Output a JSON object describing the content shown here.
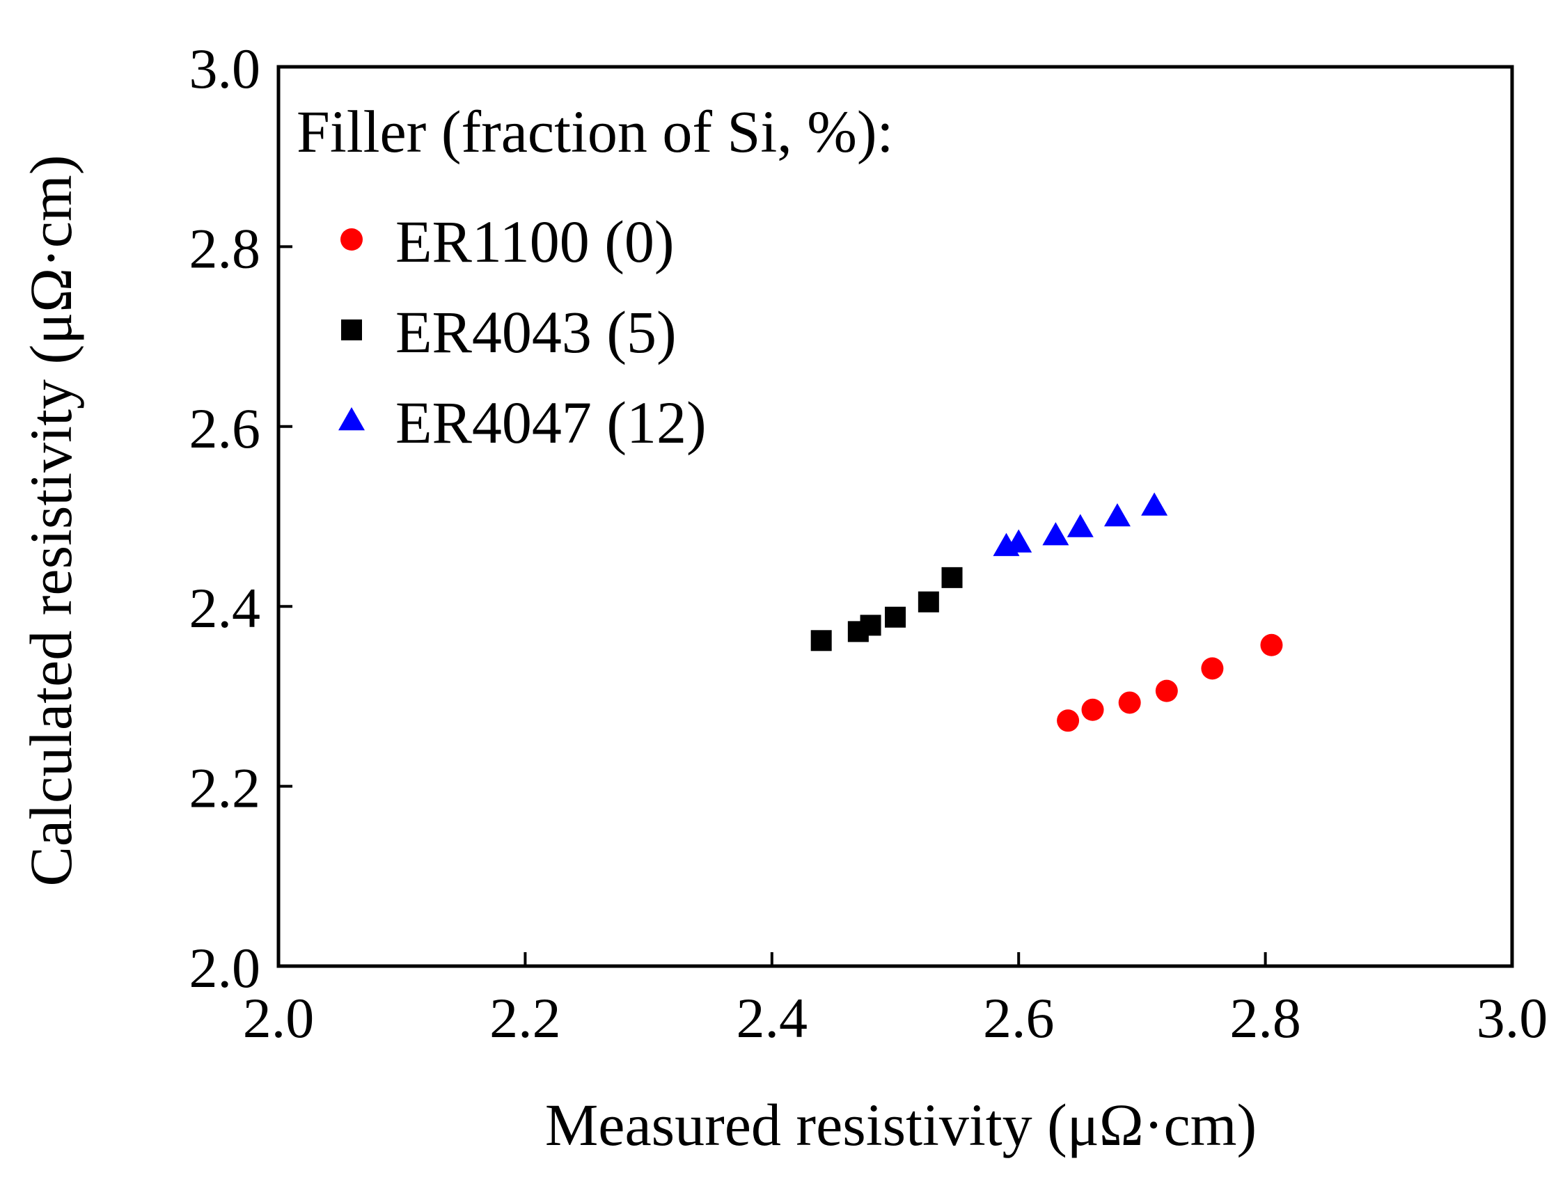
{
  "chart_data": {
    "type": "scatter",
    "title": "",
    "xlabel": "Measured resistivity (μΩ·cm)",
    "ylabel": "Calculated resistivity (μΩ·cm)",
    "xlim": [
      2.0,
      3.0
    ],
    "ylim": [
      2.0,
      3.0
    ],
    "xticks": [
      2.0,
      2.2,
      2.4,
      2.6,
      2.8,
      3.0
    ],
    "yticks": [
      2.0,
      2.2,
      2.4,
      2.6,
      2.8,
      3.0
    ],
    "xtick_labels": [
      "2.0",
      "2.2",
      "2.4",
      "2.6",
      "2.8",
      "3.0"
    ],
    "ytick_labels": [
      "2.0",
      "2.2",
      "2.4",
      "2.6",
      "2.8",
      "3.0"
    ],
    "grid": false,
    "legend": {
      "title": "Filler  (fraction of Si, %):",
      "position": "top-left"
    },
    "series": [
      {
        "name": "ER1100 (0)",
        "marker": "circle",
        "color": "#ff0000",
        "points": [
          {
            "x": 2.64,
            "y": 2.273
          },
          {
            "x": 2.66,
            "y": 2.285
          },
          {
            "x": 2.69,
            "y": 2.293
          },
          {
            "x": 2.72,
            "y": 2.306
          },
          {
            "x": 2.757,
            "y": 2.331
          },
          {
            "x": 2.805,
            "y": 2.357
          }
        ]
      },
      {
        "name": "ER4043 (5)",
        "marker": "square",
        "color": "#000000",
        "points": [
          {
            "x": 2.44,
            "y": 2.362
          },
          {
            "x": 2.47,
            "y": 2.372
          },
          {
            "x": 2.48,
            "y": 2.379
          },
          {
            "x": 2.5,
            "y": 2.388
          },
          {
            "x": 2.527,
            "y": 2.405
          },
          {
            "x": 2.546,
            "y": 2.432
          }
        ]
      },
      {
        "name": "ER4047 (12)",
        "marker": "triangle",
        "color": "#0000ff",
        "points": [
          {
            "x": 2.59,
            "y": 2.467
          },
          {
            "x": 2.6,
            "y": 2.471
          },
          {
            "x": 2.63,
            "y": 2.479
          },
          {
            "x": 2.65,
            "y": 2.488
          },
          {
            "x": 2.68,
            "y": 2.5
          },
          {
            "x": 2.71,
            "y": 2.512
          }
        ]
      }
    ]
  }
}
